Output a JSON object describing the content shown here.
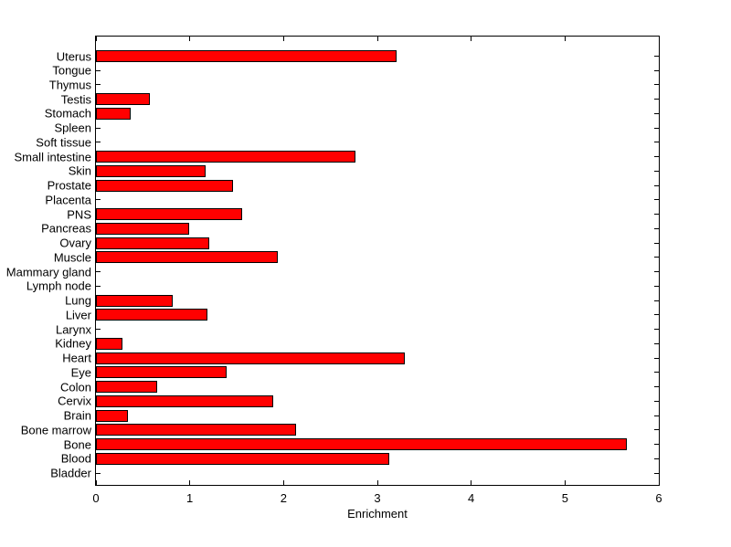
{
  "figure": {
    "background_color": "#ffffff",
    "axes_color": "#000000"
  },
  "chart_data": {
    "type": "bar",
    "orientation": "horizontal",
    "xlabel": "Enrichment",
    "xlim": [
      0,
      6
    ],
    "xticks": [
      0,
      1,
      2,
      3,
      4,
      5,
      6
    ],
    "grid": false,
    "legend": null,
    "bar_color": "#ff0000",
    "bar_edge_color": "#000000",
    "categories": [
      "Uterus",
      "Tongue",
      "Thymus",
      "Testis",
      "Stomach",
      "Spleen",
      "Soft tissue",
      "Small intestine",
      "Skin",
      "Prostate",
      "Placenta",
      "PNS",
      "Pancreas",
      "Ovary",
      "Muscle",
      "Mammary gland",
      "Lymph node",
      "Lung",
      "Liver",
      "Larynx",
      "Kidney",
      "Heart",
      "Eye",
      "Colon",
      "Cervix",
      "Brain",
      "Bone marrow",
      "Bone",
      "Blood",
      "Bladder"
    ],
    "values": [
      3.2,
      0,
      0,
      0.57,
      0.37,
      0,
      0,
      2.77,
      1.17,
      1.46,
      0,
      1.56,
      0.99,
      1.21,
      1.94,
      0,
      0,
      0.82,
      1.19,
      0,
      0.28,
      3.29,
      1.39,
      0.65,
      1.89,
      0.34,
      2.13,
      5.66,
      3.13,
      0
    ]
  }
}
